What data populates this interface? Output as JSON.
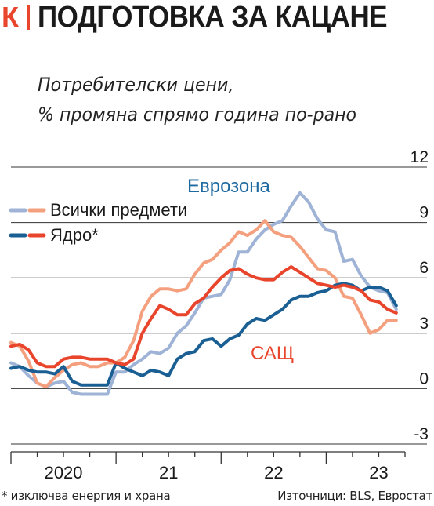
{
  "brand": {
    "mark": "К"
  },
  "header": {
    "title": "ПОДГОТОВКА ЗА КАЦАНЕ",
    "subtitle_line1": "Потребителски цени,",
    "subtitle_line2": "% промяна спрямо година по-рано"
  },
  "footer": {
    "footnote": "* изключва енергия и храна",
    "source": "Източници: BLS, Евростат"
  },
  "colors": {
    "eurozone_all": "#9fb3d6",
    "eurozone_core": "#1a5f93",
    "us_all": "#f4a07e",
    "us_core": "#e8452c",
    "eurozone_label": "#1f6aa0",
    "us_label": "#e8452c",
    "grid": "#333333"
  },
  "chart_data": {
    "type": "line",
    "title": "Потребителски цени, % промяна спрямо година по-рано",
    "ylim": [
      -3,
      12
    ],
    "yticks": [
      -3,
      0,
      3,
      6,
      9,
      12
    ],
    "ytick_labels": [
      "-3",
      "0",
      "3",
      "6",
      "9",
      "12"
    ],
    "xlim": [
      "2020-01",
      "2023-10"
    ],
    "xticks": [
      "2020",
      "21",
      "22",
      "23"
    ],
    "grid": true,
    "legend": {
      "placement": "top-left",
      "entries": [
        {
          "label": "Всички предмети",
          "style": "dashed-light"
        },
        {
          "label": "Ядро*",
          "style": "dashed-dark"
        }
      ]
    },
    "annotations": [
      {
        "text": "Еврозона",
        "near": "eurozone peak"
      },
      {
        "text": "САЩ",
        "near": "US series"
      }
    ],
    "series": [
      {
        "name": "Еврозона – Всички предмети",
        "x": [
          "2020-01",
          "2020-02",
          "2020-03",
          "2020-04",
          "2020-05",
          "2020-06",
          "2020-07",
          "2020-08",
          "2020-09",
          "2020-10",
          "2020-11",
          "2020-12",
          "2021-01",
          "2021-02",
          "2021-03",
          "2021-04",
          "2021-05",
          "2021-06",
          "2021-07",
          "2021-08",
          "2021-09",
          "2021-10",
          "2021-11",
          "2021-12",
          "2022-01",
          "2022-02",
          "2022-03",
          "2022-04",
          "2022-05",
          "2022-06",
          "2022-07",
          "2022-08",
          "2022-09",
          "2022-10",
          "2022-11",
          "2022-12",
          "2023-01",
          "2023-02",
          "2023-03",
          "2023-04",
          "2023-05",
          "2023-06",
          "2023-07",
          "2023-08",
          "2023-09"
        ],
        "values": [
          1.4,
          1.2,
          0.7,
          0.3,
          0.1,
          0.3,
          0.4,
          -0.2,
          -0.3,
          -0.3,
          -0.3,
          -0.3,
          0.9,
          0.9,
          1.3,
          1.6,
          2.0,
          1.9,
          2.2,
          3.0,
          3.4,
          4.1,
          4.9,
          5.0,
          5.1,
          5.9,
          7.4,
          7.4,
          8.1,
          8.6,
          8.9,
          9.1,
          9.9,
          10.6,
          10.1,
          9.2,
          8.6,
          8.5,
          6.9,
          7.0,
          6.1,
          5.5,
          5.3,
          5.2,
          4.3
        ],
        "color": "#9fb3d6"
      },
      {
        "name": "Еврозона – Ядро*",
        "x": [
          "2020-01",
          "2020-02",
          "2020-03",
          "2020-04",
          "2020-05",
          "2020-06",
          "2020-07",
          "2020-08",
          "2020-09",
          "2020-10",
          "2020-11",
          "2020-12",
          "2021-01",
          "2021-02",
          "2021-03",
          "2021-04",
          "2021-05",
          "2021-06",
          "2021-07",
          "2021-08",
          "2021-09",
          "2021-10",
          "2021-11",
          "2021-12",
          "2022-01",
          "2022-02",
          "2022-03",
          "2022-04",
          "2022-05",
          "2022-06",
          "2022-07",
          "2022-08",
          "2022-09",
          "2022-10",
          "2022-11",
          "2022-12",
          "2023-01",
          "2023-02",
          "2023-03",
          "2023-04",
          "2023-05",
          "2023-06",
          "2023-07",
          "2023-08",
          "2023-09"
        ],
        "values": [
          1.1,
          1.2,
          1.0,
          0.9,
          0.9,
          0.8,
          1.2,
          0.4,
          0.2,
          0.2,
          0.2,
          0.2,
          1.4,
          1.1,
          0.9,
          0.7,
          1.0,
          0.9,
          0.7,
          1.6,
          1.9,
          2.0,
          2.6,
          2.7,
          2.3,
          2.7,
          2.9,
          3.5,
          3.8,
          3.7,
          4.0,
          4.3,
          4.8,
          5.0,
          5.0,
          5.2,
          5.3,
          5.6,
          5.7,
          5.6,
          5.3,
          5.5,
          5.5,
          5.3,
          4.5
        ],
        "color": "#1a5f93"
      },
      {
        "name": "САЩ – Всички предмети",
        "x": [
          "2020-01",
          "2020-02",
          "2020-03",
          "2020-04",
          "2020-05",
          "2020-06",
          "2020-07",
          "2020-08",
          "2020-09",
          "2020-10",
          "2020-11",
          "2020-12",
          "2021-01",
          "2021-02",
          "2021-03",
          "2021-04",
          "2021-05",
          "2021-06",
          "2021-07",
          "2021-08",
          "2021-09",
          "2021-10",
          "2021-11",
          "2021-12",
          "2022-01",
          "2022-02",
          "2022-03",
          "2022-04",
          "2022-05",
          "2022-06",
          "2022-07",
          "2022-08",
          "2022-09",
          "2022-10",
          "2022-11",
          "2022-12",
          "2023-01",
          "2023-02",
          "2023-03",
          "2023-04",
          "2023-05",
          "2023-06",
          "2023-07",
          "2023-08",
          "2023-09"
        ],
        "values": [
          2.5,
          2.3,
          1.5,
          0.3,
          0.1,
          0.6,
          1.0,
          1.3,
          1.4,
          1.2,
          1.2,
          1.4,
          1.4,
          1.7,
          2.6,
          4.2,
          5.0,
          5.4,
          5.4,
          5.3,
          5.4,
          6.2,
          6.8,
          7.0,
          7.5,
          7.9,
          8.5,
          8.3,
          8.6,
          9.1,
          8.5,
          8.3,
          8.2,
          7.7,
          7.1,
          6.5,
          6.4,
          6.0,
          5.0,
          4.9,
          4.0,
          3.0,
          3.2,
          3.7,
          3.7
        ],
        "color": "#f4a07e"
      },
      {
        "name": "САЩ – Ядро*",
        "x": [
          "2020-01",
          "2020-02",
          "2020-03",
          "2020-04",
          "2020-05",
          "2020-06",
          "2020-07",
          "2020-08",
          "2020-09",
          "2020-10",
          "2020-11",
          "2020-12",
          "2021-01",
          "2021-02",
          "2021-03",
          "2021-04",
          "2021-05",
          "2021-06",
          "2021-07",
          "2021-08",
          "2021-09",
          "2021-10",
          "2021-11",
          "2021-12",
          "2022-01",
          "2022-02",
          "2022-03",
          "2022-04",
          "2022-05",
          "2022-06",
          "2022-07",
          "2022-08",
          "2022-09",
          "2022-10",
          "2022-11",
          "2022-12",
          "2023-01",
          "2023-02",
          "2023-03",
          "2023-04",
          "2023-05",
          "2023-06",
          "2023-07",
          "2023-08",
          "2023-09"
        ],
        "values": [
          2.3,
          2.4,
          2.1,
          1.4,
          1.2,
          1.2,
          1.6,
          1.7,
          1.7,
          1.6,
          1.6,
          1.6,
          1.4,
          1.3,
          1.6,
          3.0,
          3.8,
          4.5,
          4.3,
          4.0,
          4.0,
          4.6,
          4.9,
          5.5,
          6.0,
          6.4,
          6.5,
          6.2,
          6.0,
          5.9,
          5.9,
          6.3,
          6.6,
          6.3,
          6.0,
          5.7,
          5.6,
          5.5,
          5.6,
          5.5,
          5.3,
          4.8,
          4.7,
          4.3,
          4.1
        ],
        "color": "#e8452c"
      }
    ]
  }
}
